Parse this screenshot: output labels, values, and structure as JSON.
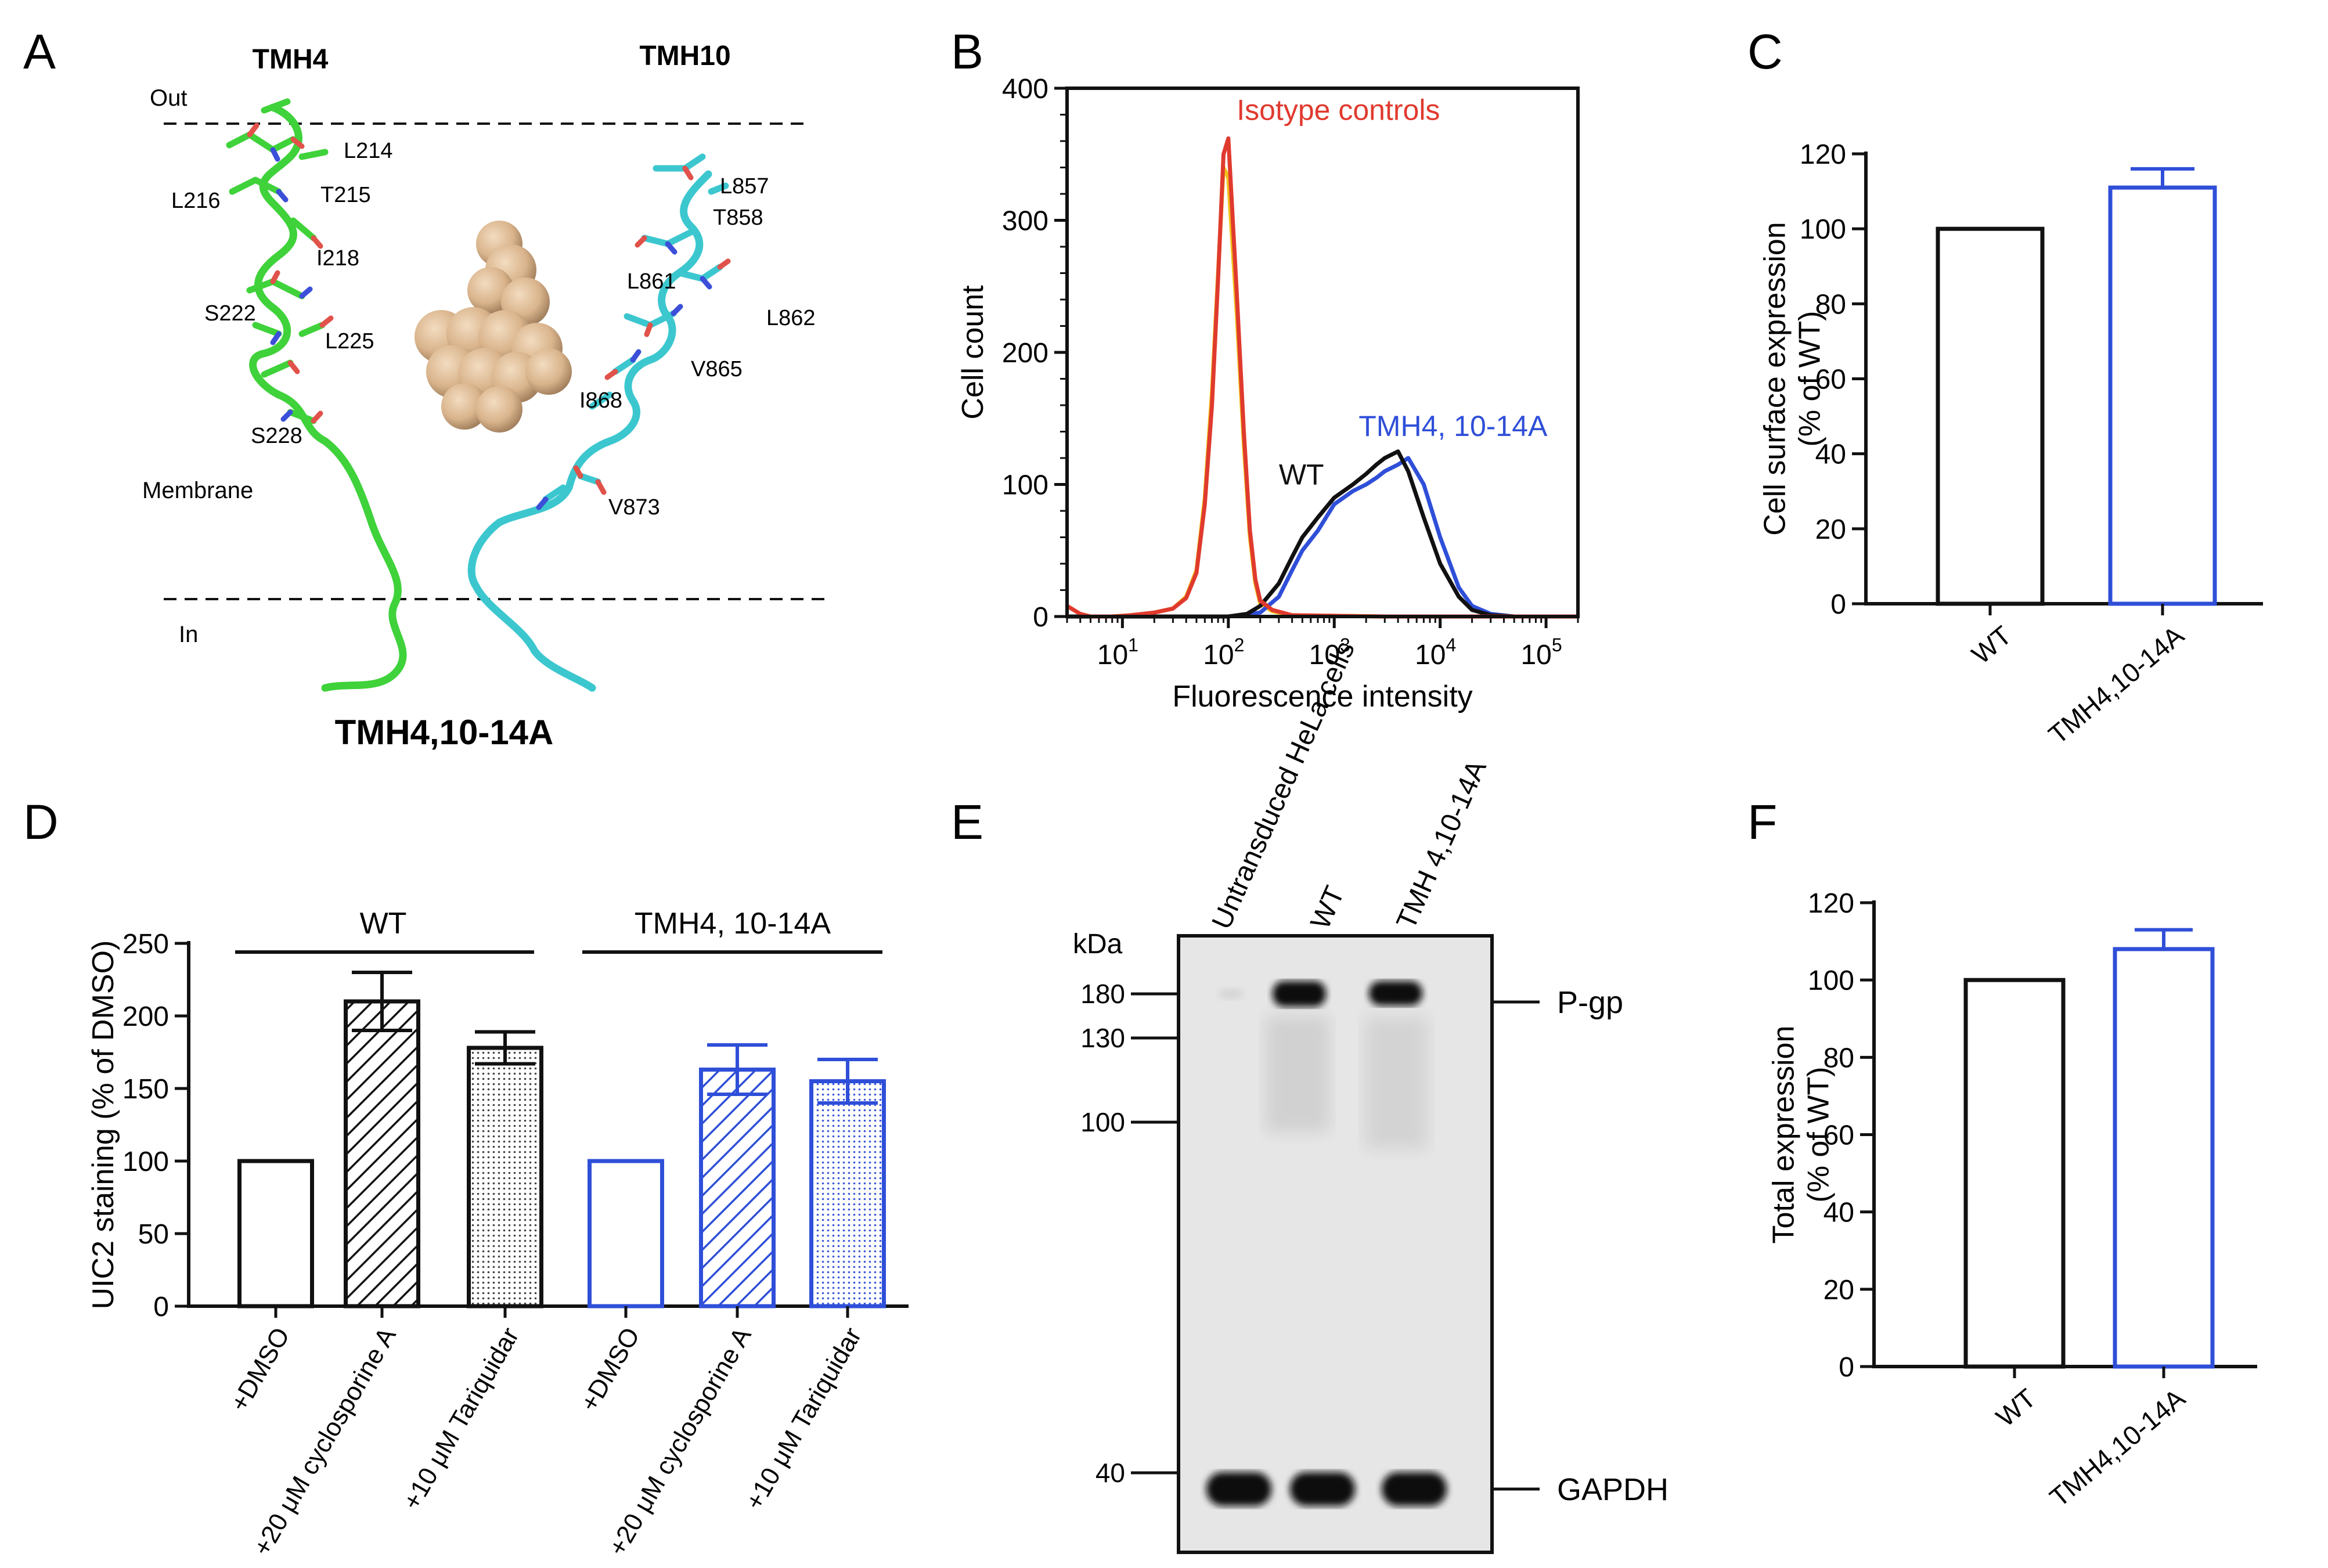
{
  "panels": {
    "A": "A",
    "B": "B",
    "C": "C",
    "D": "D",
    "E": "E",
    "F": "F"
  },
  "colors": {
    "black": "#111111",
    "blue": "#2f4fd8",
    "red": "#e03a2e",
    "yellow": "#f2c21b",
    "green": "#3fd23a",
    "cyan": "#3cc7cf",
    "ligand": "#d9b48c",
    "blot_bg": "#e6e6e6"
  },
  "panel_a": {
    "tmh4_title": "TMH4",
    "tmh10_title": "TMH10",
    "out_label": "Out",
    "in_label": "In",
    "membrane_label": "Membrane",
    "caption": "TMH4,10-14A",
    "residues_tmh4": [
      "L214",
      "L216",
      "T215",
      "I218",
      "S222",
      "L225",
      "S228"
    ],
    "residues_tmh10": [
      "L857",
      "T858",
      "L861",
      "L862",
      "V865",
      "I868",
      "V873"
    ]
  },
  "panel_e": {
    "kda_label": "kDa",
    "lanes": [
      "Untransduced HeLa cells",
      "WT",
      "TMH 4,10-14A"
    ],
    "markers": [
      "180",
      "130",
      "100",
      "40"
    ],
    "band_labels": [
      "P-gp",
      "GAPDH"
    ]
  },
  "chart_data": [
    {
      "panel": "B",
      "type": "line",
      "title": "",
      "xlabel": "Fluorescence intensity",
      "ylabel": "Cell count",
      "xscale": "log",
      "xlim": [
        3,
        200000
      ],
      "ylim": [
        0,
        400
      ],
      "xtick_base": "10",
      "xtick_exps": [
        "1",
        "2",
        "3",
        "4",
        "5"
      ],
      "yticks": [
        "0",
        "100",
        "200",
        "300",
        "400"
      ],
      "annotations": {
        "isotype": "Isotype controls",
        "wt": "WT",
        "mutant": "TMH4, 10-14A"
      },
      "series": [
        {
          "name": "Isotype control (yellow)",
          "x": [
            3,
            4,
            5,
            8,
            12,
            20,
            30,
            40,
            50,
            60,
            70,
            80,
            90,
            100,
            120,
            140,
            160,
            180,
            200,
            260,
            400,
            3000,
            200000
          ],
          "y": [
            8,
            2,
            0,
            0,
            1,
            3,
            6,
            15,
            35,
            90,
            170,
            260,
            340,
            332,
            230,
            130,
            60,
            25,
            10,
            4,
            1,
            0,
            0
          ]
        },
        {
          "name": "Isotype control (red)",
          "x": [
            3,
            4,
            5,
            8,
            12,
            20,
            30,
            40,
            50,
            60,
            70,
            80,
            90,
            100,
            120,
            140,
            160,
            180,
            200,
            260,
            400,
            3000,
            200000
          ],
          "y": [
            8,
            2,
            0,
            0,
            1,
            3,
            6,
            14,
            33,
            85,
            160,
            255,
            350,
            362,
            245,
            140,
            65,
            28,
            12,
            5,
            1,
            0,
            0
          ]
        },
        {
          "name": "WT",
          "x": [
            3,
            50,
            100,
            150,
            200,
            300,
            400,
            500,
            700,
            1000,
            1500,
            2000,
            2500,
            3000,
            4000,
            5000,
            7000,
            10000,
            15000,
            20000,
            30000,
            50000,
            200000
          ],
          "y": [
            0,
            0,
            0,
            2,
            8,
            25,
            45,
            60,
            75,
            90,
            100,
            108,
            115,
            120,
            125,
            110,
            75,
            40,
            15,
            5,
            1,
            0,
            0
          ]
        },
        {
          "name": "TMH4, 10-14A",
          "x": [
            3,
            50,
            100,
            200,
            300,
            400,
            500,
            700,
            1000,
            1500,
            2000,
            2500,
            3000,
            4000,
            5000,
            7000,
            10000,
            15000,
            20000,
            30000,
            50000,
            200000
          ],
          "y": [
            0,
            0,
            0,
            3,
            15,
            35,
            50,
            65,
            85,
            95,
            100,
            105,
            110,
            115,
            120,
            100,
            60,
            22,
            8,
            2,
            0,
            0
          ]
        }
      ]
    },
    {
      "panel": "C",
      "type": "bar",
      "ylabel": "Cell surface expression (% of WT)",
      "ylim": [
        0,
        120
      ],
      "yticks": [
        "0",
        "20",
        "40",
        "60",
        "80",
        "100",
        "120"
      ],
      "categories": [
        "WT",
        "TMH4,10-14A"
      ],
      "values": [
        100,
        111
      ],
      "errors": [
        0,
        5
      ]
    },
    {
      "panel": "D",
      "type": "bar",
      "ylabel": "UIC2 staining (% of DMSO)",
      "ylim": [
        0,
        250
      ],
      "yticks": [
        "0",
        "50",
        "100",
        "150",
        "200",
        "250"
      ],
      "group_labels": [
        "WT",
        "TMH4, 10-14A"
      ],
      "categories": [
        "+DMSO",
        "+20 μM cyclosporine A",
        "+10 μM Tariquidar",
        "+DMSO",
        "+20 μM cyclosporine A",
        "+10 μM Tariquidar"
      ],
      "values": [
        100,
        210,
        178,
        100,
        163,
        155
      ],
      "errors": [
        0,
        20,
        11,
        0,
        17,
        15
      ],
      "fills": [
        "open",
        "hatch",
        "dots",
        "open",
        "hatch",
        "dots"
      ]
    },
    {
      "panel": "F",
      "type": "bar",
      "ylabel": "Total expression (% of WT)",
      "ylim": [
        0,
        120
      ],
      "yticks": [
        "0",
        "20",
        "40",
        "60",
        "80",
        "100",
        "120"
      ],
      "categories": [
        "WT",
        "TMH4,10-14A"
      ],
      "values": [
        100,
        108
      ],
      "errors": [
        0,
        5
      ]
    }
  ]
}
